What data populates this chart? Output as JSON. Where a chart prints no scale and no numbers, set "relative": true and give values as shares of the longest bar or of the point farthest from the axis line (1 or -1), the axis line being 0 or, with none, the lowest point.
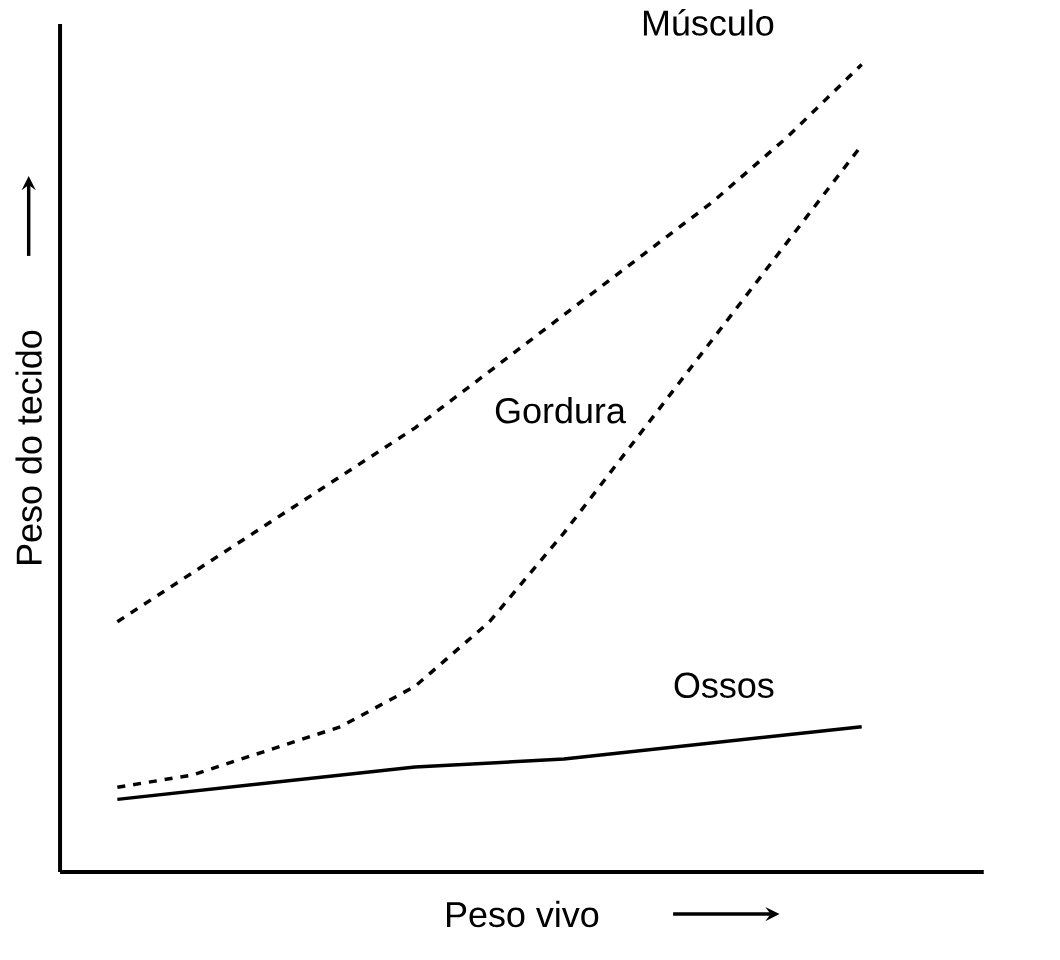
{
  "chart_data": {
    "type": "line",
    "relative": true,
    "xlabel": "Peso vivo",
    "ylabel": "Peso do tecido",
    "categories": [
      null,
      null,
      null,
      null,
      null,
      null,
      null,
      null,
      null,
      null,
      null
    ],
    "series": [
      {
        "name": "Músculo",
        "color": "#000000",
        "line_style": "dashed",
        "values": [
          0.31,
          0.37,
          0.43,
          0.49,
          0.55,
          0.62,
          0.69,
          0.76,
          0.83,
          0.91,
          1.0
        ]
      },
      {
        "name": "Gordura",
        "color": "#000000",
        "line_style": "dashed",
        "values": [
          0.105,
          0.12,
          0.15,
          0.18,
          0.23,
          0.31,
          0.42,
          0.54,
          0.66,
          0.78,
          0.9
        ]
      },
      {
        "name": "Ossos",
        "color": "#000000",
        "line_style": "solid",
        "values": [
          0.09,
          0.1,
          0.11,
          0.12,
          0.13,
          0.135,
          0.14,
          0.15,
          0.16,
          0.17,
          0.18
        ]
      }
    ]
  }
}
